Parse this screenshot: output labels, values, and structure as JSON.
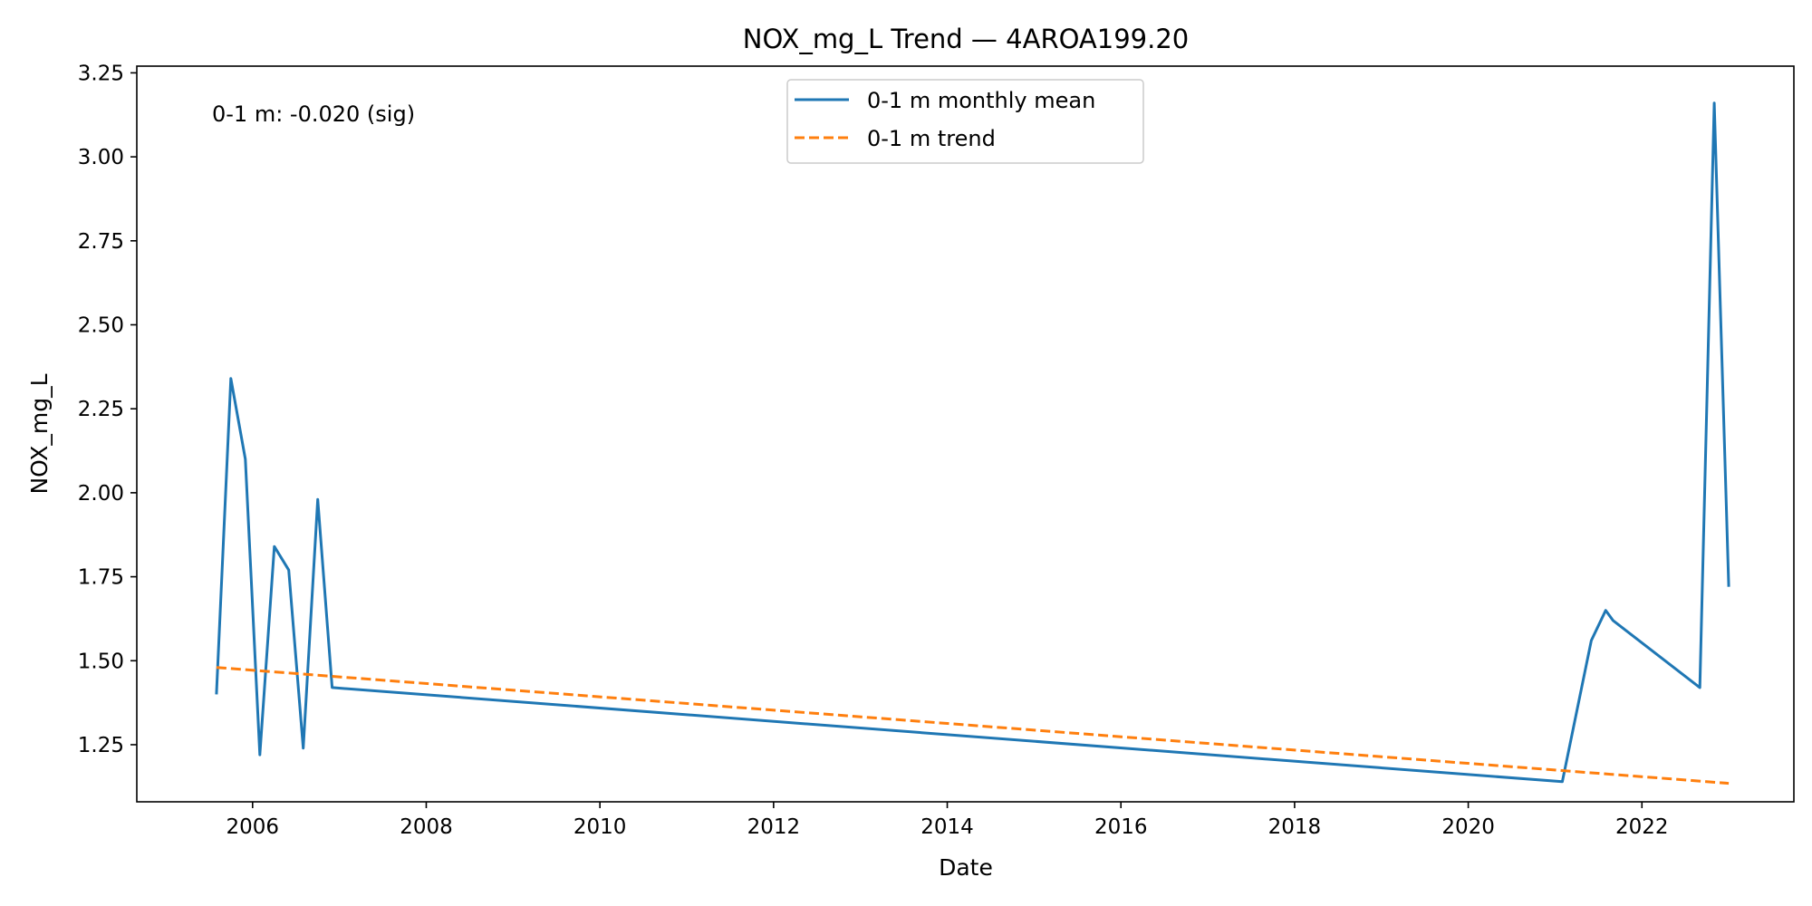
{
  "chart_data": {
    "type": "line",
    "title": "NOX_mg_L Trend — 4AROA199.20",
    "xlabel": "Date",
    "ylabel": "NOX_mg_L",
    "x_ticks": [
      "2006",
      "2008",
      "2010",
      "2012",
      "2014",
      "2016",
      "2018",
      "2020",
      "2022"
    ],
    "y_ticks": [
      "1.25",
      "1.50",
      "1.75",
      "2.00",
      "2.25",
      "2.50",
      "2.75",
      "3.00",
      "3.25"
    ],
    "xlim": [
      "2004-09",
      "2023-10"
    ],
    "ylim": [
      1.08,
      3.27
    ],
    "grid": false,
    "legend_position": "top-center",
    "annotation": "0-1 m: -0.020 (sig)",
    "series": [
      {
        "name": "0-1 m monthly mean",
        "style": "solid",
        "color": "#1f77b4",
        "points": [
          [
            "2005-08",
            1.4
          ],
          [
            "2005-10",
            2.34
          ],
          [
            "2005-12",
            2.1
          ],
          [
            "2006-02",
            1.22
          ],
          [
            "2006-04",
            1.84
          ],
          [
            "2006-06",
            1.77
          ],
          [
            "2006-08",
            1.24
          ],
          [
            "2006-10",
            1.98
          ],
          [
            "2006-12",
            1.42
          ],
          [
            "2021-02",
            1.14
          ],
          [
            "2021-06",
            1.56
          ],
          [
            "2021-08",
            1.65
          ],
          [
            "2021-09",
            1.62
          ],
          [
            "2022-09",
            1.42
          ],
          [
            "2022-11",
            3.16
          ],
          [
            "2023-01",
            1.72
          ]
        ]
      },
      {
        "name": "0-1 m trend",
        "style": "dashed",
        "color": "#ff7f0e",
        "points": [
          [
            "2005-08",
            1.48
          ],
          [
            "2023-01",
            1.135
          ]
        ]
      }
    ]
  }
}
